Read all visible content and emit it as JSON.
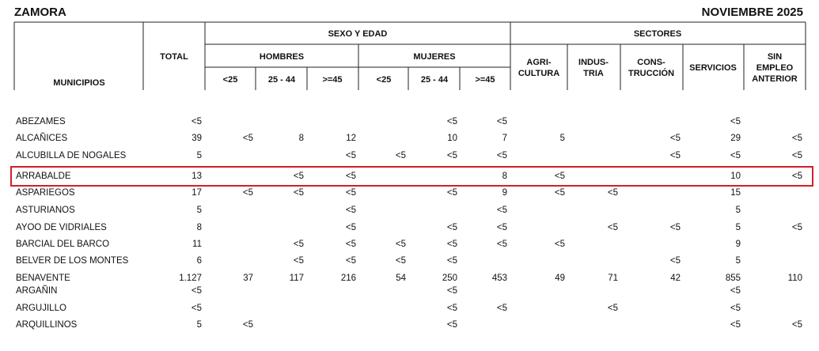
{
  "header": {
    "province": "ZAMORA",
    "period": "NOVIEMBRE 2025"
  },
  "columns": {
    "municipios": "MUNICIPIOS",
    "total": "TOTAL",
    "sexo_edad": "SEXO Y EDAD",
    "hombres": "HOMBRES",
    "mujeres": "MUJERES",
    "ages_hombres": [
      "<25",
      "25 - 44",
      ">=45"
    ],
    "ages_mujeres": [
      "<25",
      "25 - 44",
      ">=45"
    ],
    "sectores": "SECTORES",
    "sector_cols": [
      [
        "AGRI-",
        "CULTURA"
      ],
      [
        "INDUS-",
        "TRIA"
      ],
      [
        "CONS-",
        "TRUCCIÓN"
      ],
      [
        "SERVICIOS"
      ],
      [
        "SIN",
        "EMPLEO",
        "ANTERIOR"
      ]
    ]
  },
  "table": {
    "rows": [
      [
        "ABEZAMES",
        "<5",
        null,
        null,
        null,
        null,
        "<5",
        "<5",
        null,
        null,
        null,
        "<5",
        null
      ],
      [
        "ALCAÑICES",
        "39",
        "<5",
        "8",
        "12",
        null,
        "10",
        "7",
        "5",
        null,
        "<5",
        "29",
        "<5"
      ],
      [
        "ALCUBILLA DE NOGALES",
        "5",
        null,
        null,
        "<5",
        "<5",
        "<5",
        "<5",
        null,
        null,
        "<5",
        "<5",
        "<5"
      ],
      [
        "ARRABALDE",
        "13",
        null,
        "<5",
        "<5",
        null,
        null,
        "8",
        "<5",
        null,
        null,
        "10",
        "<5"
      ],
      [
        "ASPARIEGOS",
        "17",
        "<5",
        "<5",
        "<5",
        null,
        "<5",
        "9",
        "<5",
        "<5",
        null,
        "15",
        null
      ],
      [
        "ASTURIANOS",
        "5",
        null,
        null,
        "<5",
        null,
        null,
        "<5",
        null,
        null,
        null,
        "5",
        null
      ],
      [
        "AYOO DE VIDRIALES",
        "8",
        null,
        null,
        "<5",
        null,
        "<5",
        "<5",
        null,
        "<5",
        "<5",
        "5",
        "<5"
      ],
      [
        "BARCIAL DEL BARCO",
        "11",
        null,
        "<5",
        "<5",
        "<5",
        "<5",
        "<5",
        "<5",
        null,
        null,
        "9",
        null
      ],
      [
        "BELVER DE LOS MONTES",
        "6",
        null,
        "<5",
        "<5",
        "<5",
        "<5",
        null,
        null,
        null,
        "<5",
        "5",
        null
      ],
      [
        "BENAVENTE",
        "1.127",
        "37",
        "117",
        "216",
        "54",
        "250",
        "453",
        "49",
        "71",
        "42",
        "855",
        "110"
      ],
      [
        "ARGAÑIN",
        "<5",
        null,
        null,
        null,
        null,
        "<5",
        null,
        null,
        null,
        null,
        "<5",
        null
      ],
      [
        "ARGUJILLO",
        "<5",
        null,
        null,
        null,
        null,
        "<5",
        "<5",
        null,
        "<5",
        null,
        "<5",
        null
      ],
      [
        "ARQUILLINOS",
        "5",
        "<5",
        null,
        null,
        null,
        "<5",
        null,
        null,
        null,
        null,
        "<5",
        "<5"
      ]
    ],
    "highlighted_row": 3
  }
}
